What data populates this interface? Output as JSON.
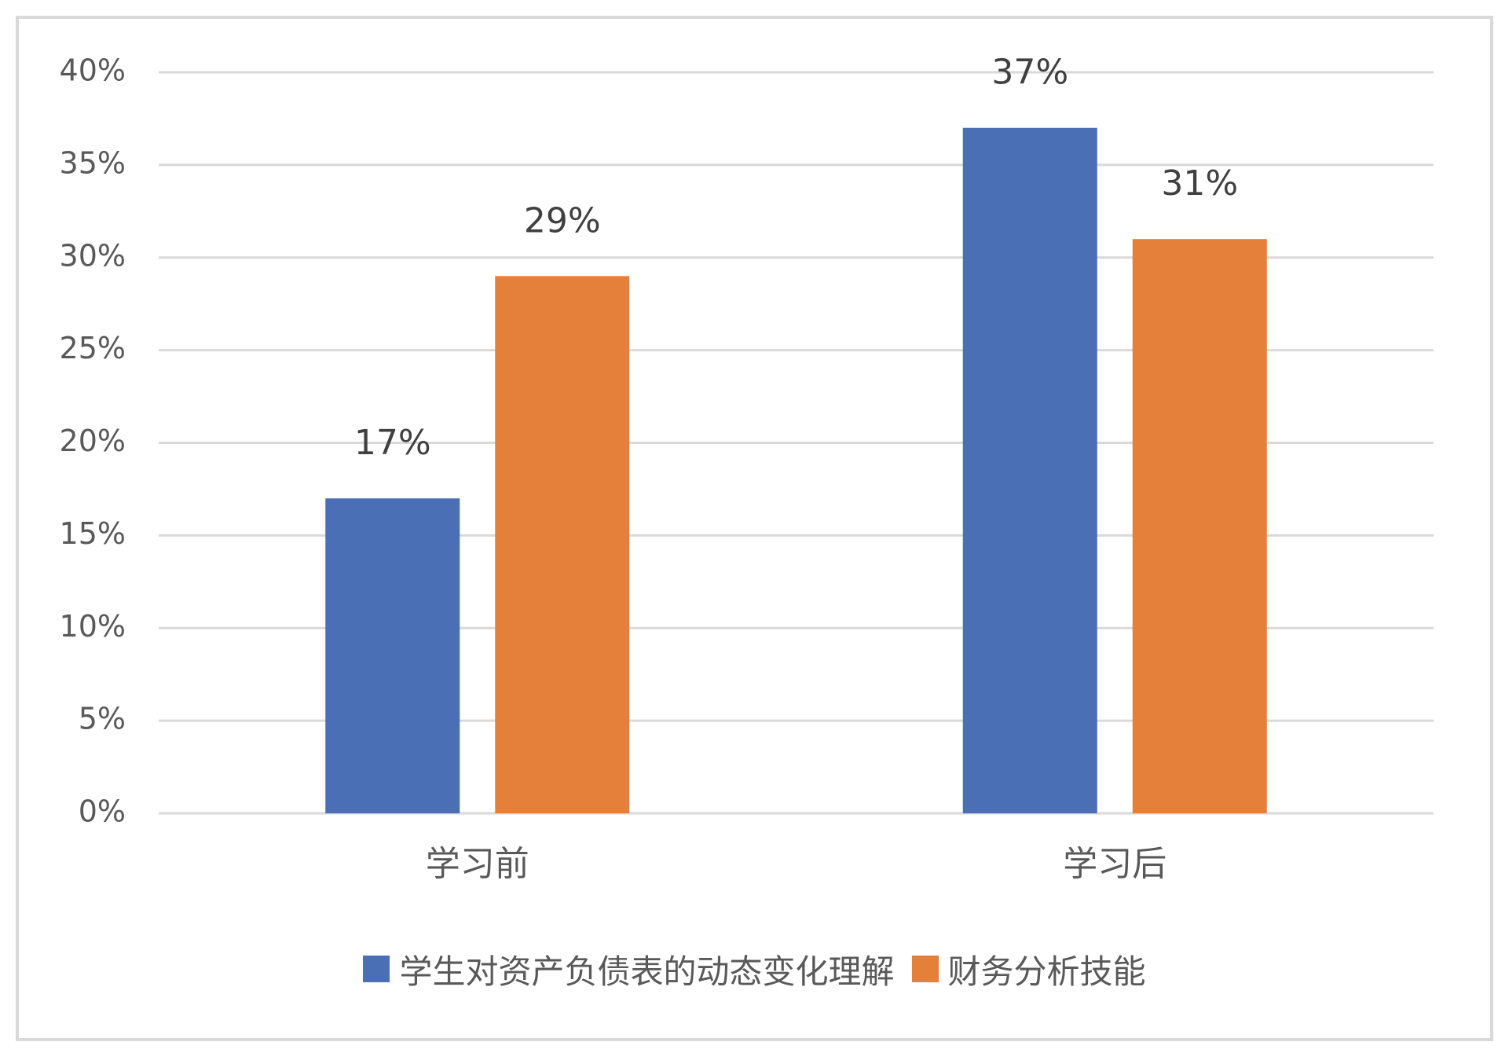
{
  "chart_data": {
    "type": "bar",
    "categories": [
      "学习前",
      "学习后"
    ],
    "series": [
      {
        "name": "学生对资产负债表的动态变化理解",
        "color": "#4a6fb5",
        "values": [
          17,
          37
        ],
        "value_labels": [
          "17%",
          "37%"
        ]
      },
      {
        "name": "财务分析技能",
        "color": "#e5803a",
        "values": [
          29,
          31
        ],
        "value_labels": [
          "29%",
          "31%"
        ]
      }
    ],
    "ylim": [
      0,
      40
    ],
    "yticks": [
      {
        "value": 0,
        "label": "0%"
      },
      {
        "value": 5,
        "label": "5%"
      },
      {
        "value": 10,
        "label": "10%"
      },
      {
        "value": 15,
        "label": "15%"
      },
      {
        "value": 20,
        "label": "20%"
      },
      {
        "value": 25,
        "label": "25%"
      },
      {
        "value": 30,
        "label": "30%"
      },
      {
        "value": 35,
        "label": "35%"
      },
      {
        "value": 40,
        "label": "40%"
      }
    ],
    "grid": true,
    "legend": "bottom"
  }
}
